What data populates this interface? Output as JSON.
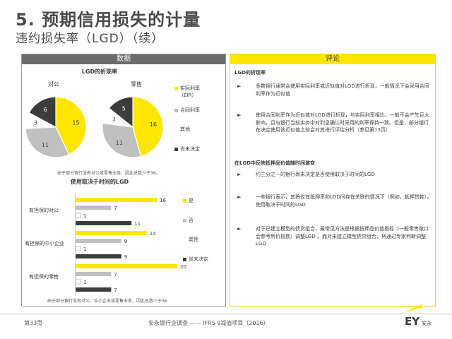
{
  "header": {
    "title": "5. 预期信用损失的计量",
    "subtitle": "违约损失率（LGD）（续）"
  },
  "left_panel": {
    "heading": "数据",
    "pie_title": "LGD的折现率",
    "pie_labels": [
      "对公",
      "零售"
    ],
    "pie_legend": [
      {
        "label": "实际利率",
        "label2": "（EIR）",
        "color": "#ffe600"
      },
      {
        "label": "合同利率",
        "color": "#c0c0c0"
      },
      {
        "label": "其他",
        "color": "#ffffff"
      },
      {
        "label": "尚未决定",
        "color": "#3c3c3c"
      }
    ],
    "pie_note": "由于部分银行没有对公或零售业务，因此总数少于36。",
    "bar_title": "使用取决于时间的LGD",
    "bar_groups": [
      "有担保的对公",
      "有担保的中小企业",
      "有担保的零售"
    ],
    "bar_legend": [
      {
        "label": "是",
        "color": "#ffe600"
      },
      {
        "label": "否",
        "color": "#c0c0c0"
      },
      {
        "label": "其他",
        "color": "#ffffff"
      },
      {
        "label": "尚未决定",
        "color": "#3c3c3c"
      }
    ],
    "bar_note": "由于部分银行没有对公、中小企业或零售业务，因此总数少于36"
  },
  "chart_data": [
    {
      "type": "pie",
      "title": "对公",
      "categories": [
        "实际利率（EIR）",
        "合同利率",
        "其他",
        "尚未决定"
      ],
      "values": [
        15,
        11,
        3,
        6
      ]
    },
    {
      "type": "pie",
      "title": "零售",
      "categories": [
        "实际利率（EIR）",
        "合同利率",
        "其他",
        "尚未决定"
      ],
      "values": [
        16,
        11,
        3,
        5
      ]
    },
    {
      "type": "bar",
      "title": "使用取决于时间的LGD",
      "categories": [
        "有担保的对公",
        "有担保的中小企业",
        "有担保的零售"
      ],
      "series": [
        {
          "name": "是",
          "values": [
            16,
            14,
            20
          ]
        },
        {
          "name": "否",
          "values": [
            7,
            9,
            7
          ]
        },
        {
          "name": "其他",
          "values": [
            1,
            1,
            1
          ]
        },
        {
          "name": "尚未决定",
          "values": [
            11,
            9,
            7
          ]
        }
      ]
    }
  ],
  "right_panel": {
    "heading": "评论",
    "section1_title": "LGD的折现率",
    "items1": [
      "多数银行通常会使用实际利率或近似值对LGD进行折现，一般情况下会采用合同利率作为近似值",
      "使用合同利率作为近似值对LGD进行折现，与实际利率相比，一般不会产生巨大影响，且与银行当前实务中对利息确认时采用的利率保持一致。但是，部分银行在决定使用该近似值之前会对其进行评估分析（参见第13页）"
    ],
    "section2_title": "在LGD中反映抵押品价值随时间演变",
    "items2": [
      "约三分之一的银行尚未决定是否使用取决于时间的LGD",
      "一些银行表示，其将仅在抵押率和LGD间存在关联的情况下（例如，抵押贷款），使用取决于时间的LGD",
      "对于已建立模型的债贷组合，最常见方法是根据抵押品价值指标（一般零售敞口会参考房价指数）调整LGD 。而对未建立模型债贷组合，将通过专家判断调整LGD"
    ]
  },
  "footer": {
    "page": "第33页",
    "center": "安永银行业调查 —— IFRS 9减值项目（2016）",
    "logo_text": "EY",
    "logo_sub": "安永"
  }
}
